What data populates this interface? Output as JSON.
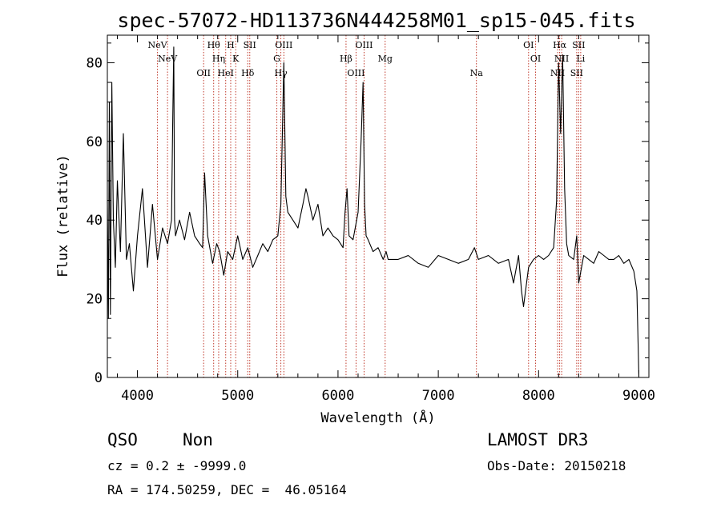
{
  "chart_data": {
    "type": "line",
    "title": "spec-57072-HD113736N444258M01_sp15-045.fits",
    "xlabel": "Wavelength (Å)",
    "ylabel": "Flux (relative)",
    "xlim": [
      3700,
      9100
    ],
    "ylim": [
      0,
      87
    ],
    "xticks": [
      4000,
      5000,
      6000,
      7000,
      8000,
      9000
    ],
    "yticks": [
      0,
      20,
      40,
      60,
      80
    ],
    "grid": false,
    "series": [
      {
        "name": "spectrum",
        "x": [
          3700,
          3710,
          3720,
          3730,
          3745,
          3760,
          3780,
          3800,
          3830,
          3860,
          3890,
          3920,
          3960,
          4000,
          4050,
          4100,
          4150,
          4200,
          4250,
          4300,
          4340,
          4350,
          4362,
          4370,
          4380,
          4420,
          4470,
          4520,
          4570,
          4620,
          4650,
          4670,
          4700,
          4750,
          4790,
          4820,
          4861,
          4900,
          4950,
          5000,
          5050,
          5100,
          5150,
          5200,
          5250,
          5300,
          5350,
          5400,
          5430,
          5460,
          5480,
          5500,
          5550,
          5600,
          5650,
          5680,
          5700,
          5750,
          5800,
          5850,
          5900,
          5950,
          6000,
          6050,
          6070,
          6090,
          6110,
          6150,
          6200,
          6230,
          6250,
          6265,
          6280,
          6300,
          6350,
          6400,
          6450,
          6480,
          6500,
          6600,
          6700,
          6800,
          6900,
          7000,
          7100,
          7200,
          7300,
          7360,
          7400,
          7500,
          7600,
          7700,
          7750,
          7800,
          7830,
          7850,
          7900,
          7950,
          8000,
          8050,
          8100,
          8150,
          8180,
          8200,
          8220,
          8240,
          8260,
          8280,
          8300,
          8350,
          8380,
          8400,
          8450,
          8500,
          8550,
          8600,
          8650,
          8700,
          8750,
          8800,
          8850,
          8900,
          8950,
          8980,
          9000
        ],
        "values": [
          45,
          15,
          70,
          16,
          75,
          40,
          28,
          50,
          32,
          62,
          30,
          34,
          22,
          36,
          48,
          28,
          44,
          30,
          38,
          34,
          40,
          62,
          84,
          40,
          36,
          40,
          35,
          42,
          36,
          34,
          33,
          52,
          36,
          29,
          34,
          32,
          26,
          32,
          30,
          36,
          30,
          33,
          28,
          31,
          34,
          32,
          35,
          36,
          44,
          80,
          46,
          42,
          40,
          38,
          44,
          48,
          46,
          40,
          44,
          36,
          38,
          36,
          35,
          33,
          42,
          48,
          36,
          35,
          42,
          60,
          75,
          44,
          36,
          35,
          32,
          33,
          30,
          32,
          30,
          30,
          31,
          29,
          28,
          31,
          30,
          29,
          30,
          33,
          30,
          31,
          29,
          30,
          24,
          31,
          22,
          18,
          28,
          30,
          31,
          30,
          31,
          33,
          45,
          80,
          62,
          82,
          48,
          34,
          31,
          30,
          36,
          24,
          31,
          30,
          29,
          32,
          31,
          30,
          30,
          31,
          29,
          30,
          27,
          22,
          0
        ]
      }
    ],
    "line_markers": {
      "upper": [
        {
          "label": "NeV",
          "x": 4200
        },
        {
          "label": "NeV",
          "x": 4300
        },
        {
          "label": "OII",
          "x": 4660
        },
        {
          "label": "Hθ",
          "x": 4760
        },
        {
          "label": "Hη",
          "x": 4810
        },
        {
          "label": "HeI",
          "x": 4880
        },
        {
          "label": "H",
          "x": 4930
        },
        {
          "label": "K",
          "x": 4980
        },
        {
          "label": "Hδ",
          "x": 5100
        },
        {
          "label": "SII",
          "x": 5120
        },
        {
          "label": "G",
          "x": 5390
        },
        {
          "label": "Hγ",
          "x": 5430
        },
        {
          "label": "OIII",
          "x": 5460
        },
        {
          "label": "Hβ",
          "x": 6080
        },
        {
          "label": "OIII",
          "x": 6180
        },
        {
          "label": "OIII",
          "x": 6260
        },
        {
          "label": "Mg",
          "x": 6470
        },
        {
          "label": "Na",
          "x": 7380
        },
        {
          "label": "OI",
          "x": 7900
        },
        {
          "label": "OI",
          "x": 7970
        },
        {
          "label": "NII",
          "x": 8190
        },
        {
          "label": "Hα",
          "x": 8210
        },
        {
          "label": "NII",
          "x": 8230
        },
        {
          "label": "SII",
          "x": 8380
        },
        {
          "label": "SII",
          "x": 8400
        },
        {
          "label": "Li",
          "x": 8420
        }
      ]
    }
  },
  "info": {
    "class": "QSO",
    "subclass": "Non",
    "cz": "cz = 0.2 ± -9999.0",
    "coords": "RA = 174.50259, DEC =  46.05164",
    "survey": "LAMOST DR3",
    "obs_date": "Obs-Date: 20150218"
  },
  "colors": {
    "line": "#000000",
    "marker": "#c0392b",
    "background": "#ffffff"
  }
}
